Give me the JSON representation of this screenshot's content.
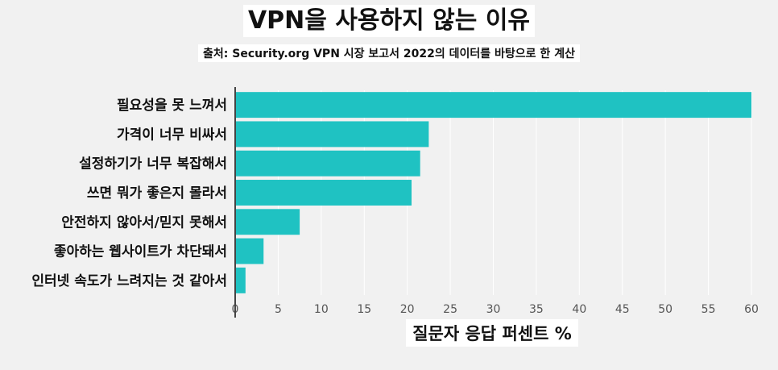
{
  "title": "VPN을 사용하지 않는 이유",
  "subtitle": "출처: Security.org VPN 시장 보고서 2022의 데이터를 바탕으로 한 계산",
  "colors": {
    "bar": "#1fc2c2",
    "background": "#f1f1f1",
    "grid": "#ffffff",
    "axis": "#444444"
  },
  "chart_data": {
    "type": "bar",
    "orientation": "horizontal",
    "categories": [
      "필요성을 못 느껴서",
      "가격이 너무 비싸서",
      "설정하기가 너무 복잡해서",
      "쓰면 뭐가 좋은지 몰라서",
      "안전하지 않아서/믿지 못해서",
      "좋아하는 웹사이트가 차단돼서",
      "인터넷 속도가 느려지는 것 같아서"
    ],
    "values": [
      60,
      22.5,
      21.5,
      20.5,
      7.5,
      3.3,
      1.2
    ],
    "xlabel": "질문자 응답 퍼센트 %",
    "ylabel": "",
    "xlim": [
      0,
      60
    ],
    "xticks": [
      0,
      5,
      10,
      15,
      20,
      25,
      30,
      35,
      40,
      45,
      50,
      55,
      60
    ],
    "grid": true
  }
}
